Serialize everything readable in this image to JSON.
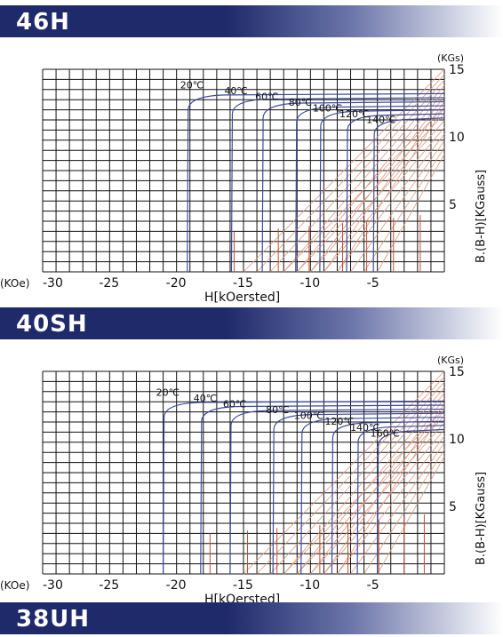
{
  "banners": {
    "b1": "46H",
    "b2": "40SH",
    "b3": "38UH"
  },
  "colors": {
    "banner": "#1f2a6b",
    "grid": "#111111",
    "bh": "#333333",
    "b": "#3a4aa0",
    "load": "#e09a80",
    "knee": "#c05030"
  },
  "chart_data": [
    {
      "type": "line",
      "title": "46H",
      "xlabel": "H[kOersted]",
      "ylabel": "B.(B-H)[KGauss]",
      "x_unit": "(KOe)",
      "y_unit": "(KGs)",
      "xlim": [
        -30,
        0
      ],
      "ylim": [
        0,
        15
      ],
      "xticks": [
        -30,
        -25,
        -20,
        -15,
        -10,
        -5
      ],
      "yticks": [
        5,
        10,
        15
      ],
      "temperatures": [
        "20℃",
        "40℃",
        "60℃",
        "80℃",
        "100℃",
        "120℃",
        "140℃"
      ],
      "hcj": [
        -19.2,
        -15.9,
        -13.6,
        -11.1,
        -9.3,
        -7.3,
        -5.3
      ],
      "br": [
        13.2,
        12.9,
        12.6,
        12.3,
        12.0,
        11.7,
        11.4
      ]
    },
    {
      "type": "line",
      "title": "40SH",
      "xlabel": "H[kOersted]",
      "ylabel": "B.(B-H)[KGauss]",
      "x_unit": "(KOe)",
      "y_unit": "(KGs)",
      "xlim": [
        -30,
        0
      ],
      "ylim": [
        0,
        15
      ],
      "xticks": [
        -30,
        -25,
        -20,
        -15,
        -10,
        -5
      ],
      "yticks": [
        5,
        10,
        15
      ],
      "temperatures": [
        "20℃",
        "40℃",
        "60℃",
        "80℃",
        "100℃",
        "120℃",
        "140℃",
        "160℃"
      ],
      "hcj": [
        -21.0,
        -18.2,
        -16.0,
        -12.8,
        -10.7,
        -8.4,
        -6.5,
        -5.0
      ],
      "br": [
        12.8,
        12.5,
        12.2,
        11.9,
        11.6,
        11.3,
        11.0,
        10.7
      ]
    }
  ]
}
